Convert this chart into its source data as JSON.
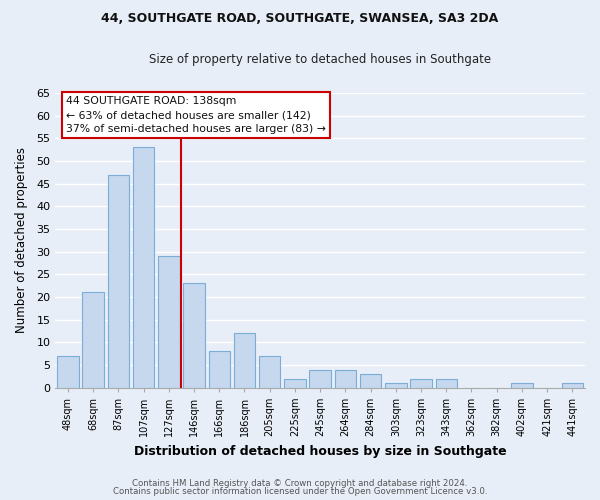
{
  "title": "44, SOUTHGATE ROAD, SOUTHGATE, SWANSEA, SA3 2DA",
  "subtitle": "Size of property relative to detached houses in Southgate",
  "xlabel": "Distribution of detached houses by size in Southgate",
  "ylabel": "Number of detached properties",
  "bar_color": "#c5d8ee",
  "bar_edge_color": "#7aaed6",
  "categories": [
    "48sqm",
    "68sqm",
    "87sqm",
    "107sqm",
    "127sqm",
    "146sqm",
    "166sqm",
    "186sqm",
    "205sqm",
    "225sqm",
    "245sqm",
    "264sqm",
    "284sqm",
    "303sqm",
    "323sqm",
    "343sqm",
    "362sqm",
    "382sqm",
    "402sqm",
    "421sqm",
    "441sqm"
  ],
  "values": [
    7,
    21,
    47,
    53,
    29,
    23,
    8,
    12,
    7,
    2,
    4,
    4,
    3,
    1,
    2,
    2,
    0,
    0,
    1,
    0,
    1
  ],
  "vline_x": 4.5,
  "vline_color": "#cc0000",
  "ylim": [
    0,
    65
  ],
  "yticks": [
    0,
    5,
    10,
    15,
    20,
    25,
    30,
    35,
    40,
    45,
    50,
    55,
    60,
    65
  ],
  "annotation_title": "44 SOUTHGATE ROAD: 138sqm",
  "annotation_line1": "← 63% of detached houses are smaller (142)",
  "annotation_line2": "37% of semi-detached houses are larger (83) →",
  "footer1": "Contains HM Land Registry data © Crown copyright and database right 2024.",
  "footer2": "Contains public sector information licensed under the Open Government Licence v3.0.",
  "background_color": "#e8eef8",
  "grid_color": "#ffffff"
}
